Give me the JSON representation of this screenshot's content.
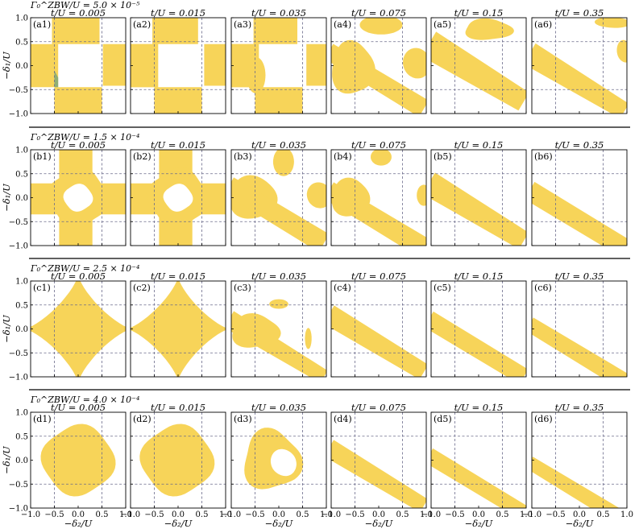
{
  "chart_data": {
    "type": "heatmap",
    "grid": true,
    "colors": {
      "region": "#f7d459",
      "minor_region": "#8fae75",
      "gridline": "#6a6a8a"
    },
    "xlabel": "−δ₂/U",
    "ylabel": "−δ₁/U",
    "xlim": [
      -1.0,
      1.0
    ],
    "ylim": [
      -1.0,
      1.0
    ],
    "xticks": [
      "−1.0",
      "−0.5",
      "0.0",
      "0.5",
      "1.0"
    ],
    "yticks": [
      "−1.0",
      "−0.5",
      "0.0",
      "0.5",
      "1.0"
    ],
    "gridlines": [
      -0.5,
      0.5
    ],
    "column_titles": [
      "t/U = 0.005",
      "t/U = 0.015",
      "t/U = 0.035",
      "t/U = 0.075",
      "t/U = 0.15",
      "t/U = 0.35"
    ],
    "t_over_U": [
      0.005,
      0.015,
      0.035,
      0.075,
      0.15,
      0.35
    ],
    "rows": [
      {
        "label": "Γ₀^ZBW/U = 5.0 × 10⁻⁵",
        "gamma_over_U": 5e-05,
        "panels": [
          "(a1)",
          "(a2)",
          "(a3)",
          "(a4)",
          "(a5)",
          "(a6)"
        ]
      },
      {
        "label": "Γ₀^ZBW/U = 1.5 × 10⁻⁴",
        "gamma_over_U": 0.00015,
        "panels": [
          "(b1)",
          "(b2)",
          "(b3)",
          "(b4)",
          "(b5)",
          "(b6)"
        ]
      },
      {
        "label": "Γ₀^ZBW/U = 2.5 × 10⁻⁴",
        "gamma_over_U": 0.00025,
        "panels": [
          "(c1)",
          "(c2)",
          "(c3)",
          "(c4)",
          "(c5)",
          "(c6)"
        ]
      },
      {
        "label": "Γ₀^ZBW/U = 4.0 × 10⁻⁴",
        "gamma_over_U": 0.0004,
        "panels": [
          "(d1)",
          "(d2)",
          "(d3)",
          "(d4)",
          "(d5)",
          "(d6)"
        ]
      }
    ]
  }
}
